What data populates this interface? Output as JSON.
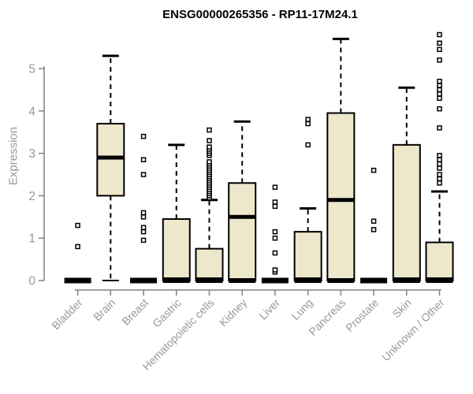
{
  "chart_data": {
    "type": "boxplot",
    "title": "ENSG00000265356 - RP11-17M24.1",
    "ylabel": "Expression",
    "xlabel": "",
    "ylim": [
      0,
      5.9
    ],
    "yticks": [
      0,
      1,
      2,
      3,
      4,
      5
    ],
    "grid": false,
    "legend": "none",
    "categories": [
      "Bladder",
      "Brain",
      "Breast",
      "Gastric",
      "Hematopoietic cells",
      "Kidney",
      "Liver",
      "Lung",
      "Pancreas",
      "Prostate",
      "Skin",
      "Unknown / Other"
    ],
    "series": [
      {
        "category": "Bladder",
        "q1": 0,
        "median": 0,
        "q3": 0,
        "whisker_low": 0,
        "whisker_high": 0,
        "outliers": [
          0.8,
          1.3
        ]
      },
      {
        "category": "Brain",
        "q1": 2.0,
        "median": 2.9,
        "q3": 3.7,
        "whisker_low": 0,
        "whisker_high": 5.3,
        "outliers": []
      },
      {
        "category": "Breast",
        "q1": 0,
        "median": 0,
        "q3": 0,
        "whisker_low": 0,
        "whisker_high": 0,
        "outliers": [
          0.95,
          1.15,
          1.25,
          1.5,
          1.6,
          2.5,
          2.85,
          3.4
        ]
      },
      {
        "category": "Gastric",
        "q1": 0,
        "median": 0,
        "q3": 1.45,
        "whisker_low": 0,
        "whisker_high": 3.2,
        "outliers": []
      },
      {
        "category": "Hematopoietic cells",
        "q1": 0,
        "median": 0,
        "q3": 0.75,
        "whisker_low": 0,
        "whisker_high": 1.9,
        "outliers": [
          1.95,
          2.0,
          2.05,
          2.1,
          2.15,
          2.2,
          2.25,
          2.3,
          2.35,
          2.4,
          2.45,
          2.5,
          2.55,
          2.6,
          2.65,
          2.7,
          2.75,
          2.8,
          2.95,
          3.0,
          3.05,
          3.1,
          3.15,
          3.3,
          3.55
        ]
      },
      {
        "category": "Kidney",
        "q1": 0,
        "median": 1.5,
        "q3": 2.3,
        "whisker_low": 0,
        "whisker_high": 3.75,
        "outliers": []
      },
      {
        "category": "Liver",
        "q1": 0,
        "median": 0,
        "q3": 0,
        "whisker_low": 0,
        "whisker_high": 0,
        "outliers": [
          0.2,
          0.25,
          0.65,
          1.0,
          1.15,
          1.75,
          1.85,
          2.2
        ]
      },
      {
        "category": "Lung",
        "q1": 0,
        "median": 0,
        "q3": 1.15,
        "whisker_low": 0,
        "whisker_high": 1.7,
        "outliers": [
          3.2,
          3.7,
          3.8
        ]
      },
      {
        "category": "Pancreas",
        "q1": 0,
        "median": 1.9,
        "q3": 3.95,
        "whisker_low": 0,
        "whisker_high": 5.7,
        "outliers": []
      },
      {
        "category": "Prostate",
        "q1": 0,
        "median": 0,
        "q3": 0,
        "whisker_low": 0,
        "whisker_high": 0,
        "outliers": [
          1.2,
          1.4,
          2.6
        ]
      },
      {
        "category": "Skin",
        "q1": 0,
        "median": 0,
        "q3": 3.2,
        "whisker_low": 0,
        "whisker_high": 4.55,
        "outliers": []
      },
      {
        "category": "Unknown / Other",
        "q1": 0,
        "median": 0,
        "q3": 0.9,
        "whisker_low": 0,
        "whisker_high": 2.1,
        "outliers": [
          2.3,
          2.4,
          2.5,
          2.65,
          2.75,
          2.85,
          2.95,
          3.6,
          4.05,
          4.3,
          4.4,
          4.5,
          4.6,
          4.7,
          5.2,
          5.45,
          5.6,
          5.8
        ]
      }
    ],
    "colors": {
      "box_fill": "#ede8cc",
      "box_border": "#000000",
      "median": "#000000",
      "axis_line": "#808080",
      "tick_label": "#999999",
      "title": "#000000",
      "background": "#ffffff"
    }
  }
}
